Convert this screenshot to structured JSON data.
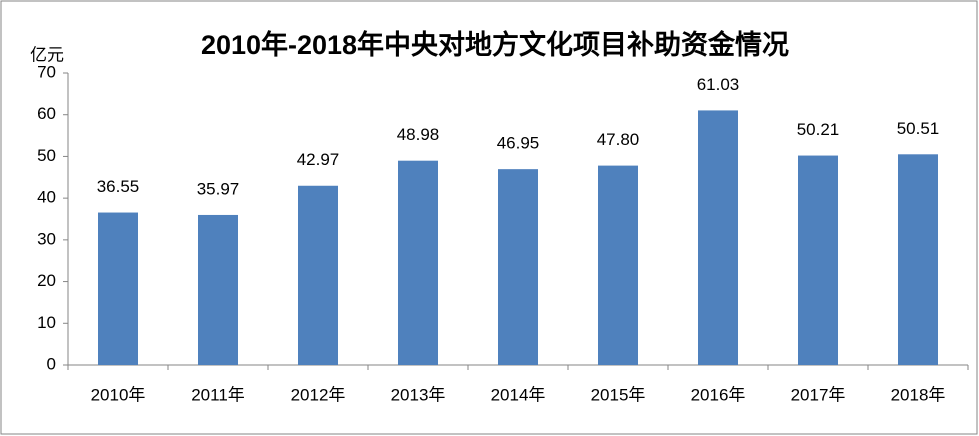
{
  "chart_data": {
    "type": "bar",
    "title": "2010年-2018年中央对地方文化项目补助资金情况",
    "y_label": "亿元",
    "categories": [
      "2010年",
      "2011年",
      "2012年",
      "2013年",
      "2014年",
      "2015年",
      "2016年",
      "2017年",
      "2018年"
    ],
    "values": [
      36.55,
      35.97,
      42.97,
      48.98,
      46.95,
      47.8,
      61.03,
      50.21,
      50.51
    ],
    "value_labels": [
      "36.55",
      "35.97",
      "42.97",
      "48.98",
      "46.95",
      "47.80",
      "61.03",
      "50.21",
      "50.51"
    ],
    "color": "#4f81bd",
    "ylim": [
      0,
      70
    ],
    "yticks": [
      0,
      10,
      20,
      30,
      40,
      50,
      60,
      70
    ],
    "grid": false
  }
}
